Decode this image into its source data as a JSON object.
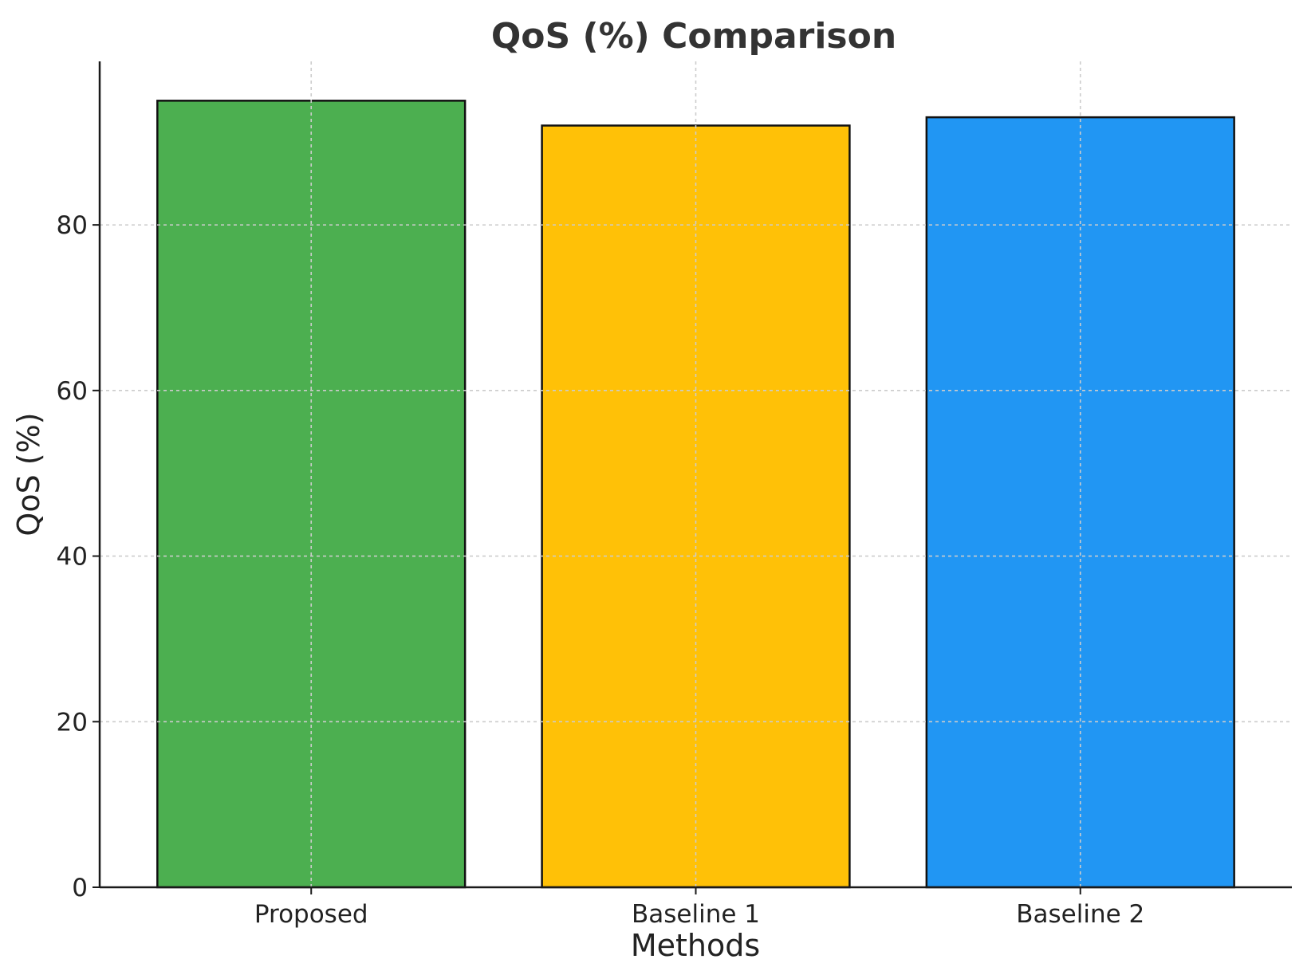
{
  "chart_data": {
    "type": "bar",
    "title": "QoS (%) Comparison",
    "xlabel": "Methods",
    "ylabel": "QoS (%)",
    "categories": [
      "Proposed",
      "Baseline 1",
      "Baseline 2"
    ],
    "values": [
      95,
      92,
      93
    ],
    "colors": [
      "#4CAF50",
      "#FFC107",
      "#2196F3"
    ],
    "ylim": [
      0,
      99.75
    ],
    "yticks": [
      0,
      20,
      40,
      60,
      80
    ],
    "grid": true
  }
}
